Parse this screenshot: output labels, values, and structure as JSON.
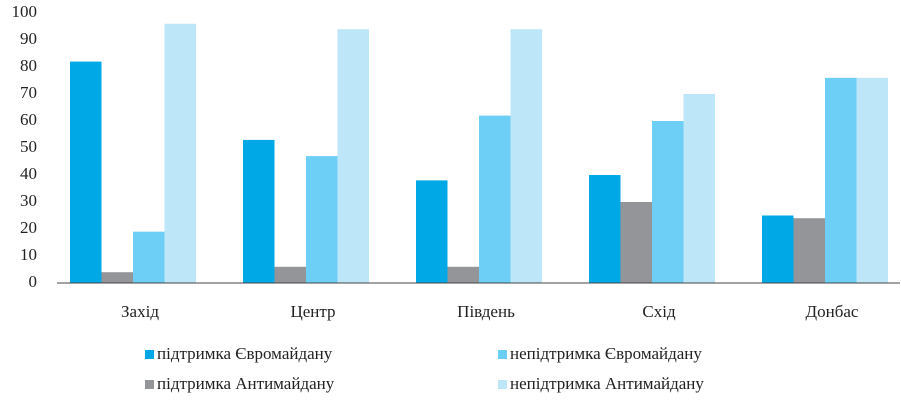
{
  "chart_data": {
    "type": "bar",
    "categories": [
      "Захід",
      "Центр",
      "Південь",
      "Схід",
      "Донбас"
    ],
    "series": [
      {
        "name": "підтримка Євромайдану",
        "color": "#00a8e6",
        "values": [
          82,
          53,
          38,
          40,
          25
        ]
      },
      {
        "name": "підтримка Антимайдану",
        "color": "#939598",
        "values": [
          4,
          6,
          6,
          30,
          24
        ]
      },
      {
        "name": "непідтримка Євромайдану",
        "color": "#6dcff6",
        "values": [
          19,
          47,
          62,
          60,
          76
        ]
      },
      {
        "name": "непідтримка Антимайдану",
        "color": "#bde6f8",
        "values": [
          96,
          94,
          94,
          70,
          76
        ]
      }
    ],
    "ylim": [
      0,
      100
    ],
    "yticks": [
      0,
      10,
      20,
      30,
      40,
      50,
      60,
      70,
      80,
      90,
      100
    ],
    "grid": false
  }
}
